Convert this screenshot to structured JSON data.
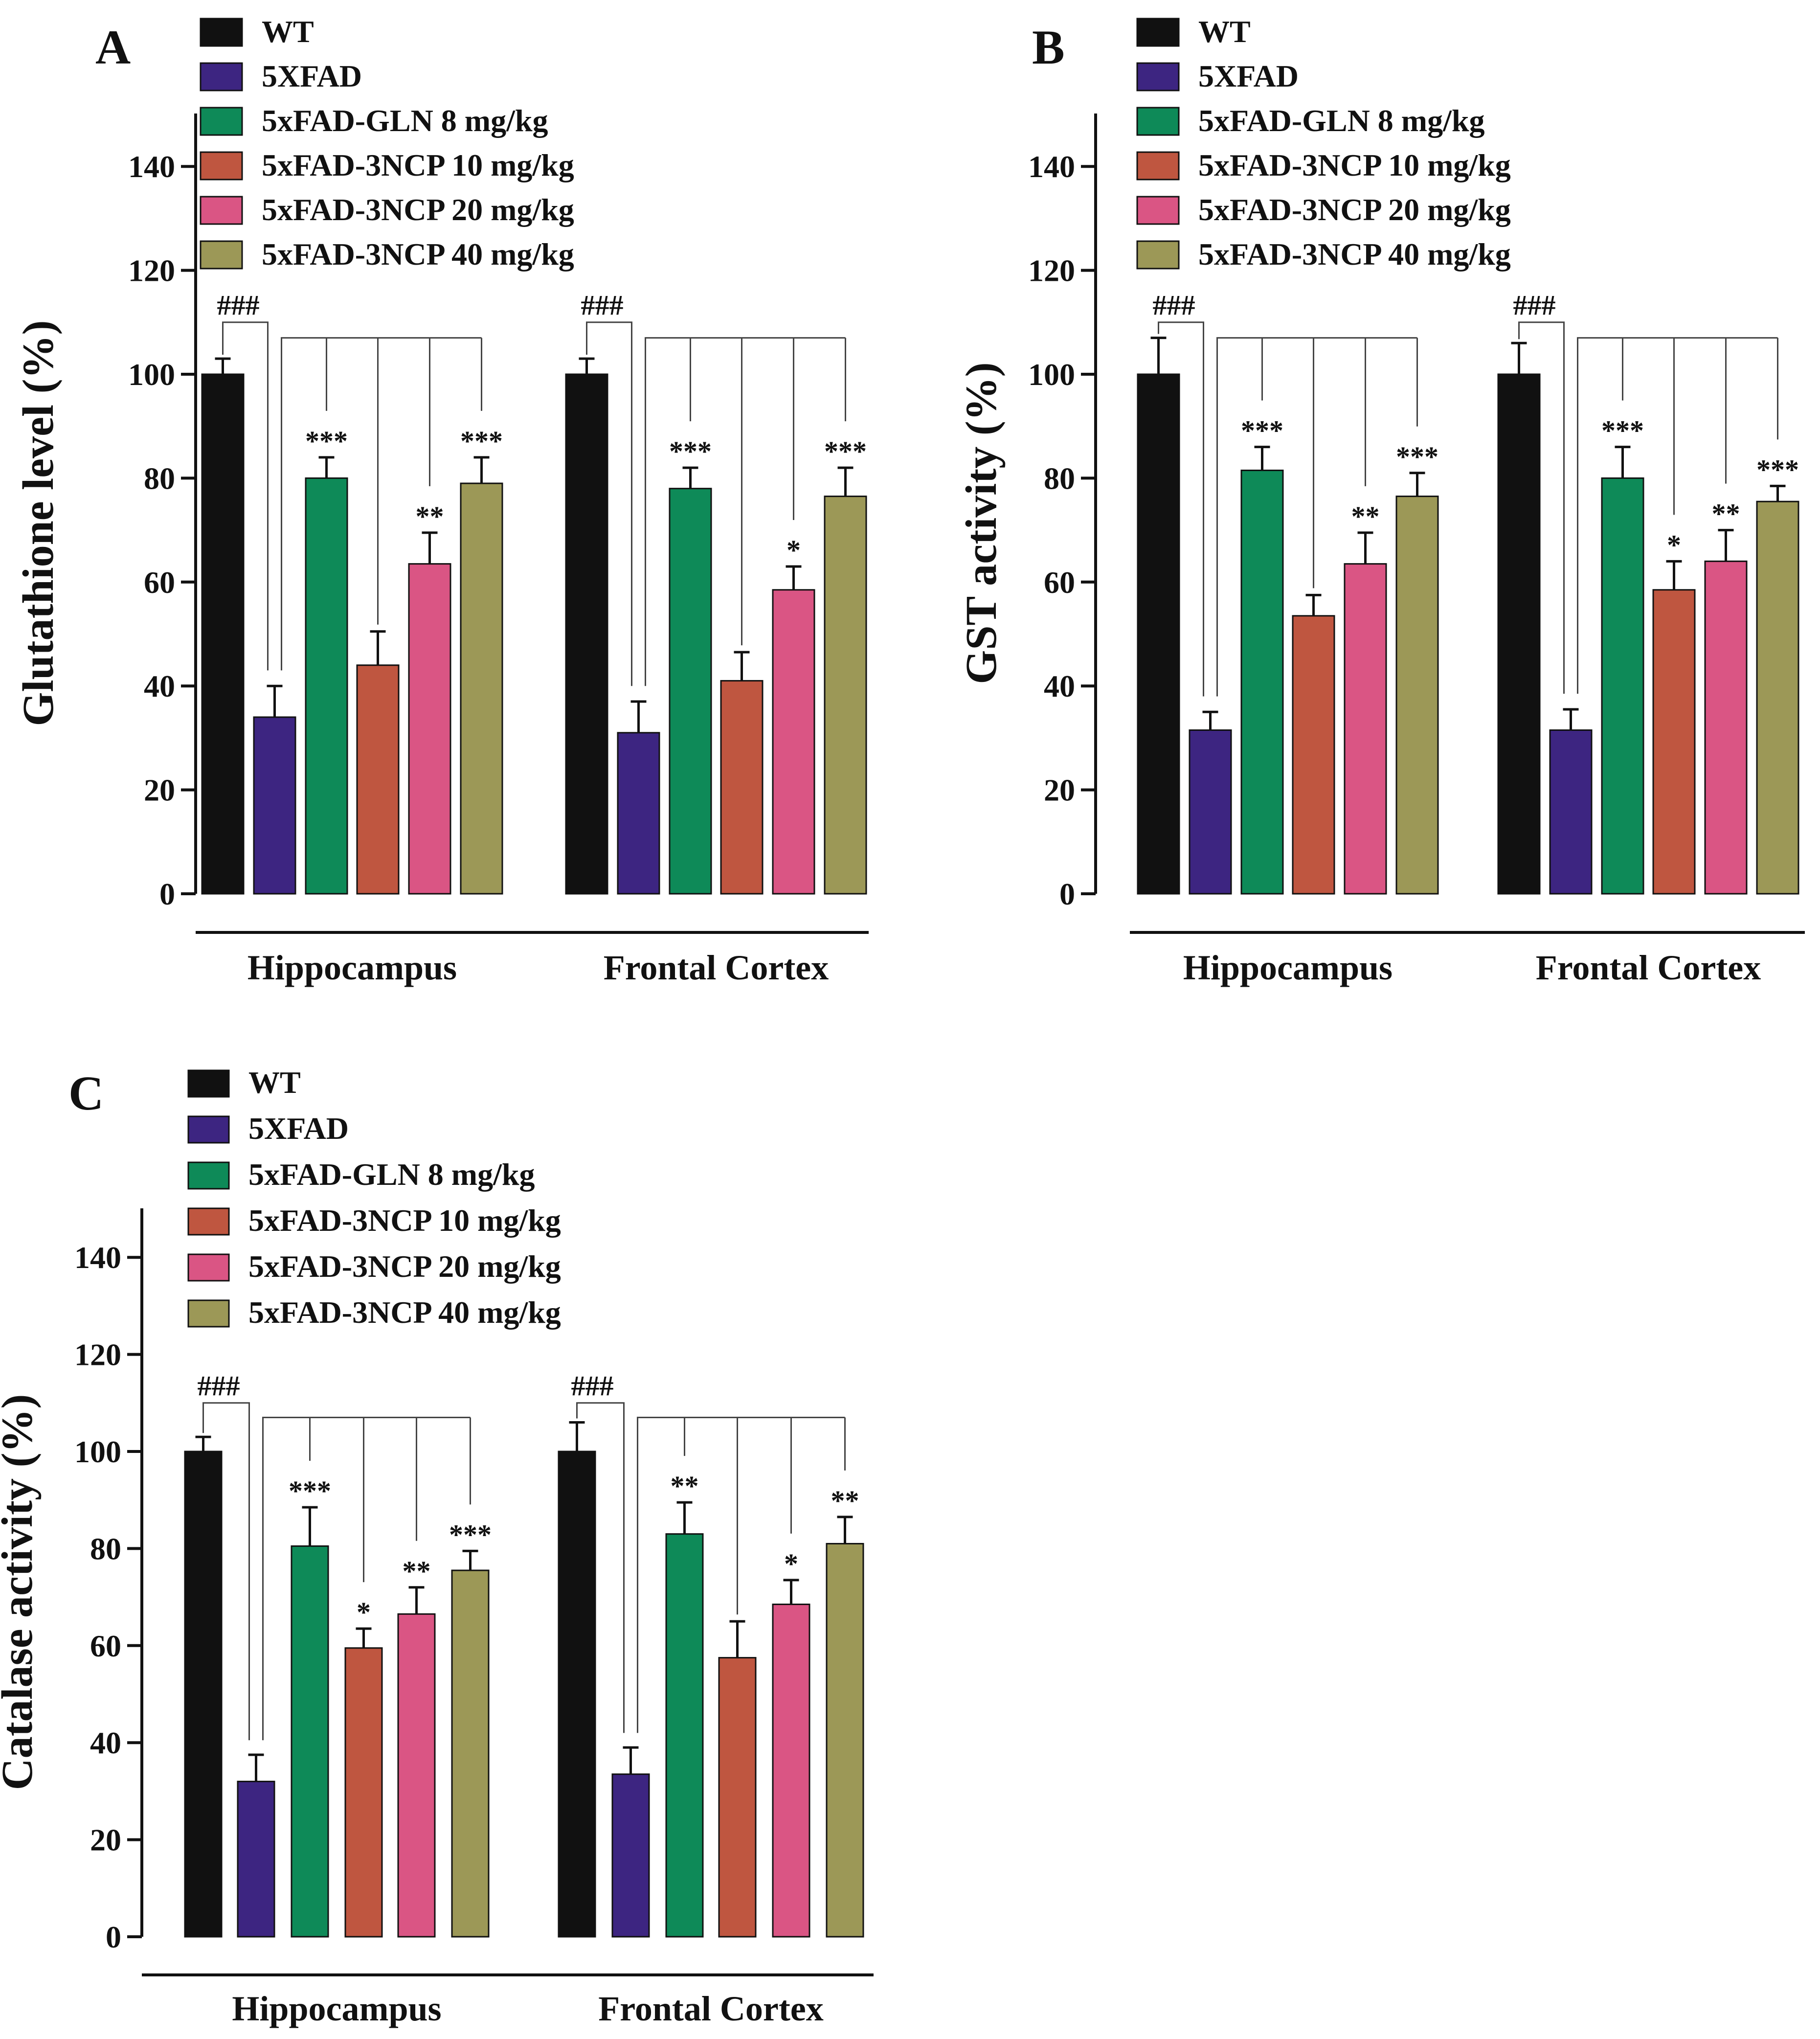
{
  "colors": {
    "WT": "#111111",
    "5XFAD": "#3d2581",
    "5xFAD-GLN 8 mg/kg": "#0e8a58",
    "5xFAD-3NCP 10 mg/kg": "#bf5640",
    "5xFAD-3NCP 20 mg/kg": "#da5584",
    "5xFAD-3NCP 40 mg/kg": "#9c9857"
  },
  "chart_data": [
    {
      "panel": "A",
      "type": "bar",
      "ylabel": "Glutathione level (%)",
      "ylim": [
        0,
        150
      ],
      "yticks": [
        0,
        20,
        40,
        60,
        80,
        100,
        120,
        140
      ],
      "categories": [
        "Hippocampus",
        "Frontal Cortex"
      ],
      "control_marker": "###",
      "series": [
        {
          "name": "WT",
          "values": [
            100,
            100
          ],
          "errors": [
            3,
            3
          ],
          "sig": [
            "",
            ""
          ]
        },
        {
          "name": "5XFAD",
          "values": [
            34,
            31
          ],
          "errors": [
            6,
            6
          ],
          "sig": [
            "",
            ""
          ]
        },
        {
          "name": "5xFAD-GLN 8 mg/kg",
          "values": [
            80,
            78
          ],
          "errors": [
            4,
            4
          ],
          "sig": [
            "***",
            "***"
          ]
        },
        {
          "name": "5xFAD-3NCP 10 mg/kg",
          "values": [
            44,
            41
          ],
          "errors": [
            6.5,
            5.5
          ],
          "sig": [
            "",
            ""
          ]
        },
        {
          "name": "5xFAD-3NCP 20 mg/kg",
          "values": [
            63.5,
            58.5
          ],
          "errors": [
            6,
            4.5
          ],
          "sig": [
            "**",
            "*"
          ]
        },
        {
          "name": "5xFAD-3NCP 40 mg/kg",
          "values": [
            79,
            76.5
          ],
          "errors": [
            5,
            5.5
          ],
          "sig": [
            "***",
            "***"
          ]
        }
      ]
    },
    {
      "panel": "B",
      "type": "bar",
      "ylabel": "GST activity (%)",
      "ylim": [
        0,
        150
      ],
      "yticks": [
        0,
        20,
        40,
        60,
        80,
        100,
        120,
        140
      ],
      "categories": [
        "Hippocampus",
        "Frontal Cortex"
      ],
      "control_marker": "###",
      "series": [
        {
          "name": "WT",
          "values": [
            100,
            100
          ],
          "errors": [
            7,
            6
          ],
          "sig": [
            "",
            ""
          ]
        },
        {
          "name": "5XFAD",
          "values": [
            31.5,
            31.5
          ],
          "errors": [
            3.5,
            4
          ],
          "sig": [
            "",
            ""
          ]
        },
        {
          "name": "5xFAD-GLN 8 mg/kg",
          "values": [
            81.5,
            80
          ],
          "errors": [
            4.5,
            6
          ],
          "sig": [
            "***",
            "***"
          ]
        },
        {
          "name": "5xFAD-3NCP 10 mg/kg",
          "values": [
            53.5,
            58.5
          ],
          "errors": [
            4,
            5.5
          ],
          "sig": [
            "",
            "*"
          ]
        },
        {
          "name": "5xFAD-3NCP 20 mg/kg",
          "values": [
            63.5,
            64
          ],
          "errors": [
            6,
            6
          ],
          "sig": [
            "**",
            "**"
          ]
        },
        {
          "name": "5xFAD-3NCP 40 mg/kg",
          "values": [
            76.5,
            75.5
          ],
          "errors": [
            4.5,
            3
          ],
          "sig": [
            "***",
            "***"
          ]
        }
      ]
    },
    {
      "panel": "C",
      "type": "bar",
      "ylabel": "Catalase activity (%)",
      "ylim": [
        0,
        150
      ],
      "yticks": [
        0,
        20,
        40,
        60,
        80,
        100,
        120,
        140
      ],
      "categories": [
        "Hippocampus",
        "Frontal Cortex"
      ],
      "control_marker": "###",
      "series": [
        {
          "name": "WT",
          "values": [
            100,
            100
          ],
          "errors": [
            3,
            6
          ],
          "sig": [
            "",
            ""
          ]
        },
        {
          "name": "5XFAD",
          "values": [
            32,
            33.5
          ],
          "errors": [
            5.5,
            5.5
          ],
          "sig": [
            "",
            ""
          ]
        },
        {
          "name": "5xFAD-GLN 8 mg/kg",
          "values": [
            80.5,
            83
          ],
          "errors": [
            8,
            6.5
          ],
          "sig": [
            "***",
            "**"
          ]
        },
        {
          "name": "5xFAD-3NCP 10 mg/kg",
          "values": [
            59.5,
            57.5
          ],
          "errors": [
            4,
            7.5
          ],
          "sig": [
            "*",
            ""
          ]
        },
        {
          "name": "5xFAD-3NCP 20 mg/kg",
          "values": [
            66.5,
            68.5
          ],
          "errors": [
            5.5,
            5
          ],
          "sig": [
            "**",
            "*"
          ]
        },
        {
          "name": "5xFAD-3NCP 40 mg/kg",
          "values": [
            75.5,
            81
          ],
          "errors": [
            4,
            5.5
          ],
          "sig": [
            "***",
            "**"
          ]
        }
      ]
    }
  ]
}
